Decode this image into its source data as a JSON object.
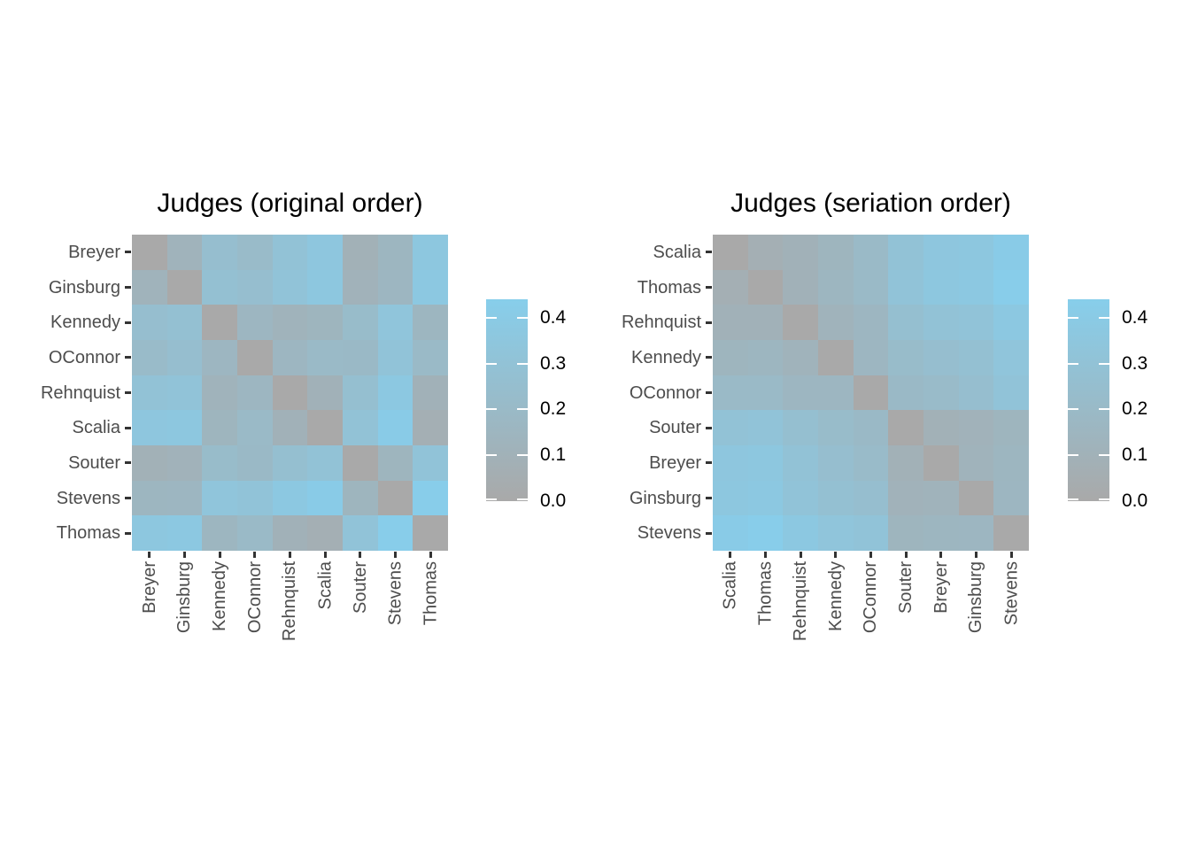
{
  "figure": {
    "background_color": "#FFFFFF",
    "title_color": "#000000",
    "axis_text_color": "#4D4D4D",
    "axis_tick_color": "#333333"
  },
  "color_scale": {
    "low_color": "#A9A9A9",
    "high_color": "#87CEEB",
    "domain_min": 0,
    "domain_max": 0.44
  },
  "legend": {
    "tick_values": [
      0.0,
      0.1,
      0.2,
      0.3,
      0.4
    ],
    "tick_labels": [
      "0.0",
      "0.1",
      "0.2",
      "0.3",
      "0.4"
    ]
  },
  "chart_data": [
    {
      "type": "heatmap",
      "title": "Judges (original order)",
      "legend_position": "right",
      "grid": false,
      "row_labels": [
        "Breyer",
        "Ginsburg",
        "Kennedy",
        "OConnor",
        "Rehnquist",
        "Scalia",
        "Souter",
        "Stevens",
        "Thomas"
      ],
      "col_labels": [
        "Breyer",
        "Ginsburg",
        "Kennedy",
        "OConnor",
        "Rehnquist",
        "Scalia",
        "Souter",
        "Stevens",
        "Thomas"
      ],
      "matrix": [
        [
          0.0,
          0.12,
          0.25,
          0.21,
          0.3,
          0.35,
          0.09,
          0.15,
          0.36
        ],
        [
          0.12,
          0.0,
          0.27,
          0.25,
          0.31,
          0.36,
          0.11,
          0.16,
          0.37
        ],
        [
          0.25,
          0.27,
          0.0,
          0.16,
          0.12,
          0.14,
          0.22,
          0.33,
          0.15
        ],
        [
          0.21,
          0.25,
          0.16,
          0.0,
          0.16,
          0.2,
          0.19,
          0.31,
          0.2
        ],
        [
          0.3,
          0.31,
          0.12,
          0.16,
          0.0,
          0.1,
          0.26,
          0.37,
          0.1
        ],
        [
          0.35,
          0.36,
          0.14,
          0.2,
          0.1,
          0.0,
          0.3,
          0.41,
          0.07
        ],
        [
          0.09,
          0.11,
          0.22,
          0.19,
          0.26,
          0.3,
          0.0,
          0.14,
          0.31
        ],
        [
          0.15,
          0.16,
          0.33,
          0.31,
          0.37,
          0.41,
          0.14,
          0.0,
          0.43
        ],
        [
          0.36,
          0.37,
          0.15,
          0.2,
          0.1,
          0.07,
          0.31,
          0.43,
          0.0
        ]
      ]
    },
    {
      "type": "heatmap",
      "title": "Judges (seriation order)",
      "legend_position": "right",
      "grid": false,
      "row_labels": [
        "Scalia",
        "Thomas",
        "Rehnquist",
        "Kennedy",
        "OConnor",
        "Souter",
        "Breyer",
        "Ginsburg",
        "Stevens"
      ],
      "col_labels": [
        "Scalia",
        "Thomas",
        "Rehnquist",
        "Kennedy",
        "OConnor",
        "Souter",
        "Breyer",
        "Ginsburg",
        "Stevens"
      ],
      "matrix": [
        [
          0.0,
          0.07,
          0.1,
          0.14,
          0.2,
          0.3,
          0.35,
          0.36,
          0.41
        ],
        [
          0.07,
          0.0,
          0.1,
          0.15,
          0.2,
          0.31,
          0.36,
          0.37,
          0.43
        ],
        [
          0.1,
          0.1,
          0.0,
          0.12,
          0.16,
          0.26,
          0.3,
          0.31,
          0.37
        ],
        [
          0.14,
          0.15,
          0.12,
          0.0,
          0.16,
          0.22,
          0.25,
          0.27,
          0.33
        ],
        [
          0.2,
          0.2,
          0.16,
          0.16,
          0.0,
          0.19,
          0.21,
          0.25,
          0.31
        ],
        [
          0.3,
          0.31,
          0.26,
          0.22,
          0.19,
          0.0,
          0.09,
          0.11,
          0.14
        ],
        [
          0.35,
          0.36,
          0.3,
          0.25,
          0.21,
          0.09,
          0.0,
          0.12,
          0.15
        ],
        [
          0.36,
          0.37,
          0.31,
          0.27,
          0.25,
          0.11,
          0.12,
          0.0,
          0.16
        ],
        [
          0.41,
          0.43,
          0.37,
          0.33,
          0.31,
          0.14,
          0.15,
          0.16,
          0.0
        ]
      ]
    }
  ]
}
